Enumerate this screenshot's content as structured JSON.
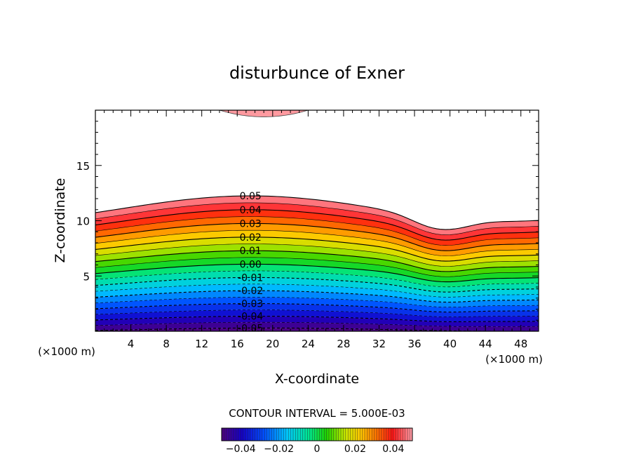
{
  "chart_data": {
    "type": "contour",
    "title": "disturbunce of Exner",
    "xlabel": "X-coordinate",
    "ylabel": "Z-coordinate",
    "x_unit": "(×1000 m)",
    "z_unit": "(×1000 m)",
    "xlim": [
      0,
      50
    ],
    "ylim": [
      0,
      20
    ],
    "x_ticks": [
      4,
      8,
      12,
      16,
      20,
      24,
      28,
      32,
      36,
      40,
      44,
      48
    ],
    "y_ticks": [
      5,
      10,
      15
    ],
    "contour_interval_text": "CONTOUR INTERVAL = 5.000E-03",
    "contour_interval": 0.005,
    "levels": [
      -0.05,
      -0.045,
      -0.04,
      -0.035,
      -0.03,
      -0.025,
      -0.02,
      -0.015,
      -0.01,
      -0.005,
      0.0,
      0.005,
      0.01,
      0.015,
      0.02,
      0.025,
      0.03,
      0.035,
      0.04,
      0.045,
      0.05
    ],
    "contour_labels": [
      "0.05",
      "0.04",
      "0.03",
      "0.02",
      "0.01",
      "0.00",
      "-0.01",
      "-0.02",
      "-0.03",
      "-0.04",
      "-0.05"
    ],
    "upper_patch": {
      "x_range": [
        14,
        24
      ],
      "z_bottom": 19.4
    },
    "colorbar": {
      "range": [
        -0.05,
        0.05
      ],
      "tick_labels": [
        "-0.04",
        "-0.02",
        "0",
        "0.02",
        "0.04"
      ],
      "tick_values": [
        -0.04,
        -0.02,
        0,
        0.02,
        0.04
      ]
    },
    "colors": {
      "low": "#4b0082",
      "mid": "#00cc00",
      "high": "#ff2020",
      "top": "#ff9aa0"
    }
  }
}
